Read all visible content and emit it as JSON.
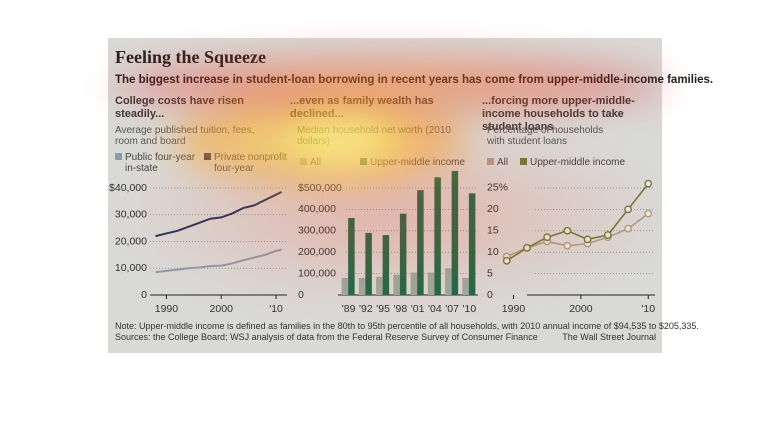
{
  "title": "Feeling the Squeeze",
  "subtitle": "The biggest increase in student-loan borrowing in recent years has come from upper-middle-income families.",
  "note": "Note: Upper-middle income is defined as families in the 80th to 95th percentile of all households, with 2010 annual income of $94,535 to $205,335.",
  "source": "Sources: the College Board; WSJ analysis of data from the Federal Reserve Survey of Consumer Finance",
  "credit": "The Wall Street Journal",
  "chart_data": [
    {
      "type": "line",
      "header": "College costs have risen steadily...",
      "subtitle": "Average published tuition, fees, room and board",
      "x": [
        1988,
        1990,
        1992,
        1994,
        1996,
        1998,
        2000,
        2002,
        2004,
        2006,
        2008,
        2010,
        2011
      ],
      "series": [
        {
          "name": "Public four-year in-state",
          "color": "#8e9aa8",
          "values": [
            8500,
            9000,
            9500,
            10000,
            10300,
            10800,
            11000,
            11800,
            13000,
            14000,
            15000,
            16500,
            17000
          ]
        },
        {
          "name": "Private nonprofit four-year",
          "color": "#26365a",
          "values": [
            22000,
            23000,
            24000,
            25500,
            27000,
            28500,
            29000,
            30500,
            32500,
            33500,
            35500,
            37500,
            38500
          ]
        }
      ],
      "xlim": [
        1987,
        2012
      ],
      "xticks": [
        1990,
        2000,
        {
          "value": 2010,
          "label": "'10"
        }
      ],
      "ylim": [
        0,
        41000
      ],
      "yticks": [
        0,
        {
          "value": 10000,
          "label": "10,000"
        },
        {
          "value": 20000,
          "label": "20,000"
        },
        {
          "value": 30000,
          "label": "30,000"
        },
        {
          "value": 40000,
          "label": "$40,000"
        }
      ],
      "grid": true
    },
    {
      "type": "bar",
      "header": "...even as family wealth has declined...",
      "subtitle": "Median household net worth (2010 dollars)",
      "categories": [
        "'89",
        "'92",
        "'95",
        "'98",
        "'01",
        "'04",
        "'07",
        "'10"
      ],
      "series": [
        {
          "name": "All",
          "color": "#9aaa9e",
          "values": [
            80000,
            80000,
            85000,
            95000,
            105000,
            105000,
            125000,
            80000
          ]
        },
        {
          "name": "Upper-middle income",
          "color": "#1e6a48",
          "values": [
            360000,
            290000,
            280000,
            380000,
            490000,
            550000,
            580000,
            475000
          ]
        }
      ],
      "ylim": [
        0,
        600000
      ],
      "yticks": [
        0,
        {
          "value": 100000,
          "label": "100,000"
        },
        {
          "value": 200000,
          "label": "200,000"
        },
        {
          "value": 300000,
          "label": "300,000"
        },
        {
          "value": 400000,
          "label": "400,000"
        },
        {
          "value": 500000,
          "label": "$500,000"
        }
      ],
      "grid": true
    },
    {
      "type": "line",
      "header": "...forcing more upper-middle-income households to take student loans",
      "subtitle": "Percentage of households with student loans",
      "x": [
        1989,
        1992,
        1995,
        1998,
        2001,
        2004,
        2007,
        2010
      ],
      "series": [
        {
          "name": "All",
          "color": "#b09c86",
          "values": [
            9,
            11,
            12.5,
            11.5,
            12,
            13.5,
            15.5,
            19
          ]
        },
        {
          "name": "Upper-middle income",
          "color": "#6f7b38",
          "values": [
            8,
            11,
            13.5,
            15,
            13,
            14,
            20,
            26
          ]
        }
      ],
      "xlim": [
        1988,
        2011
      ],
      "xticks": [
        1990,
        2000,
        {
          "value": 2010,
          "label": "'10"
        }
      ],
      "ylim": [
        0,
        27
      ],
      "yticks": [
        0,
        5,
        10,
        15,
        20,
        {
          "value": 25,
          "label": "25%"
        }
      ],
      "grid": true,
      "markers": true
    }
  ]
}
